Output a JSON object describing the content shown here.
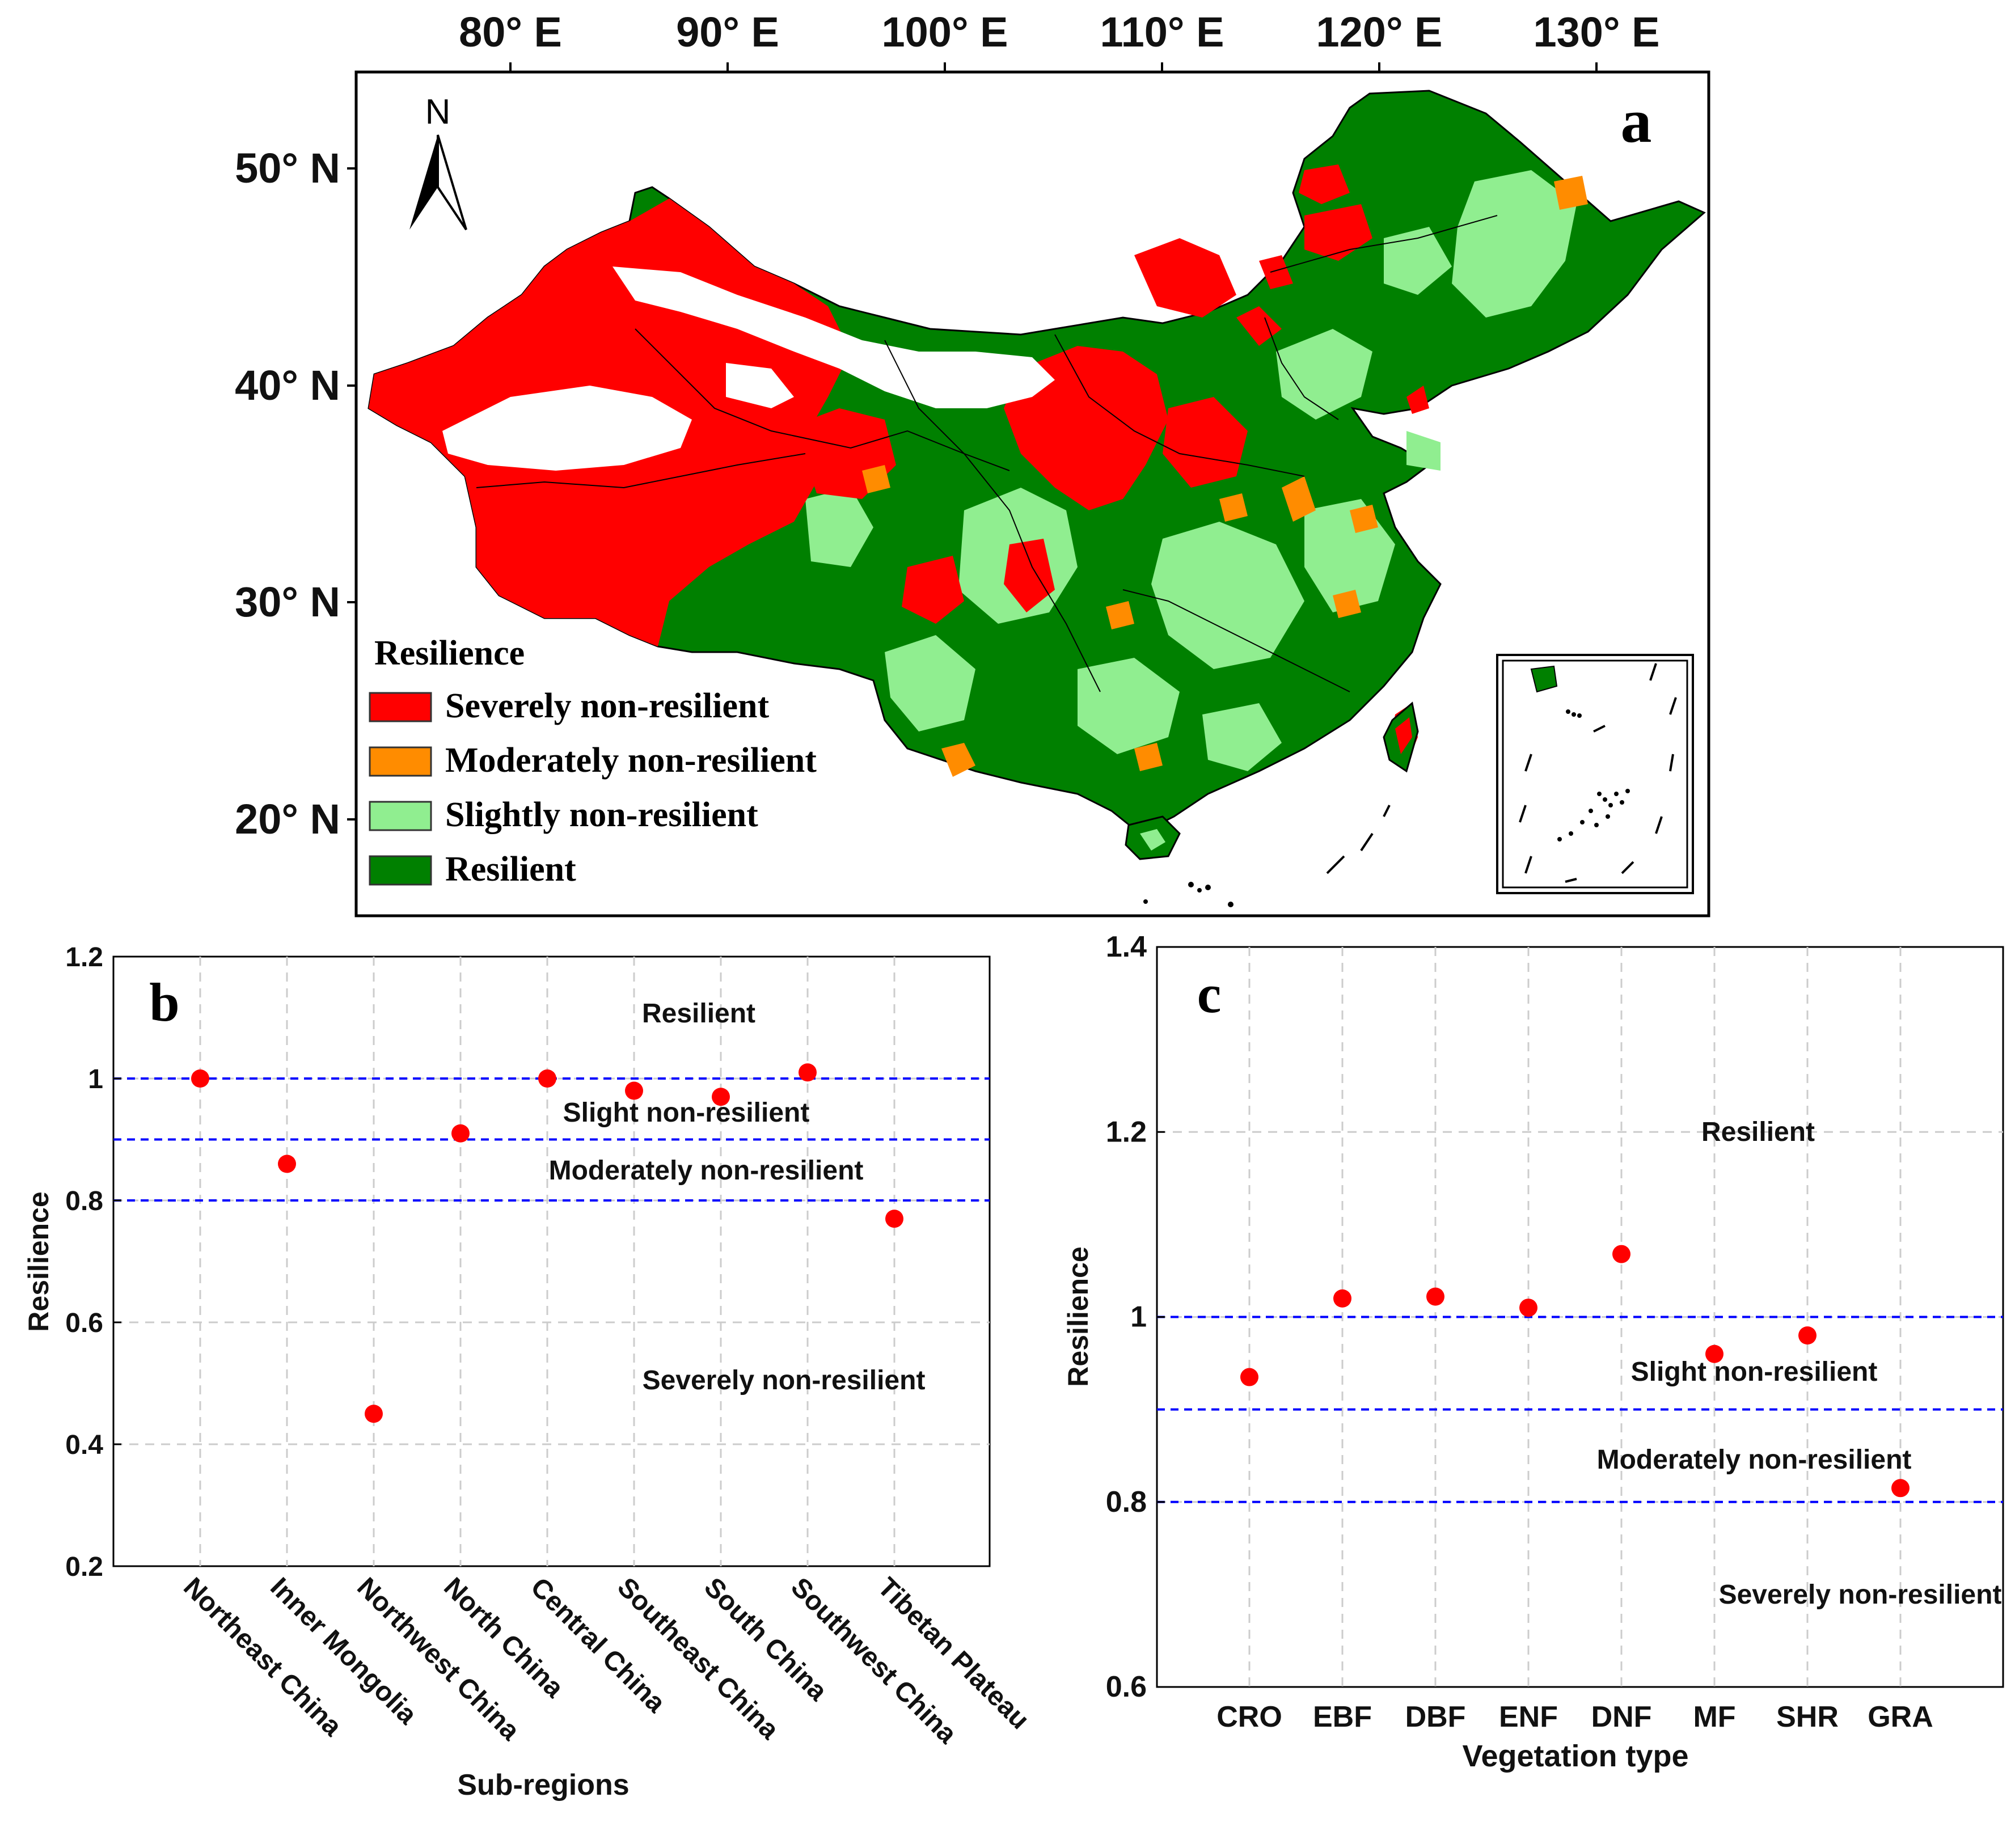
{
  "colors": {
    "severe": "#ff0000",
    "moderate": "#ff8c00",
    "slight": "#90ee90",
    "resilient": "#008000",
    "threshold_line": "#0000ff",
    "point": "#ff0000",
    "grid": "#cccccc"
  },
  "map": {
    "panel_label": "a",
    "north_label": "N",
    "lon_ticks": [
      "80° E",
      "90° E",
      "100° E",
      "110° E",
      "120° E",
      "130° E"
    ],
    "lat_ticks": [
      "50° N",
      "40° N",
      "30° N",
      "20° N"
    ],
    "legend": {
      "title": "Resilience",
      "items": [
        {
          "label": "Severely non-resilient",
          "color": "#ff0000"
        },
        {
          "label": "Moderately non-resilient",
          "color": "#ff8c00"
        },
        {
          "label": "Slightly non-resilient",
          "color": "#90ee90"
        },
        {
          "label": "Resilient",
          "color": "#008000"
        }
      ]
    }
  },
  "chart_data": [
    {
      "type": "scatter",
      "panel_label": "b",
      "categories": [
        "Northeast China",
        "Inner Mongolia",
        "Northwest China",
        "North China",
        "Central China",
        "Southeast China",
        "South China",
        "Southwest China",
        "Tibetan Plateau"
      ],
      "values": [
        1.0,
        0.86,
        0.45,
        0.91,
        1.0,
        0.98,
        0.97,
        1.01,
        0.77
      ],
      "xlabel": "Sub-regions",
      "ylabel": "Resilience",
      "ylim": [
        0.2,
        1.2
      ],
      "yticks": [
        "0.2",
        "0.4",
        "0.6",
        "0.8",
        "1",
        "1.2"
      ],
      "thresholds": [
        1.0,
        0.9,
        0.8
      ],
      "zone_labels": [
        "Resilient",
        "Slight non-resilient",
        "Moderately non-resilient",
        "Severely non-resilient"
      ],
      "grid": true
    },
    {
      "type": "scatter",
      "panel_label": "c",
      "categories": [
        "CRO",
        "EBF",
        "DBF",
        "ENF",
        "DNF",
        "MF",
        "SHR",
        "GRA"
      ],
      "values": [
        0.935,
        1.02,
        1.022,
        1.01,
        1.068,
        0.96,
        0.98,
        0.815
      ],
      "xlabel": "Vegetation type",
      "ylabel": "Resilience",
      "ylim": [
        0.6,
        1.4
      ],
      "yticks": [
        "0.6",
        "0.8",
        "1",
        "1.2",
        "1.4"
      ],
      "thresholds": [
        1.0,
        0.9,
        0.8
      ],
      "zone_labels": [
        "Resilient",
        "Slight non-resilient",
        "Moderately non-resilient",
        "Severely non-resilient"
      ],
      "grid": true
    }
  ]
}
